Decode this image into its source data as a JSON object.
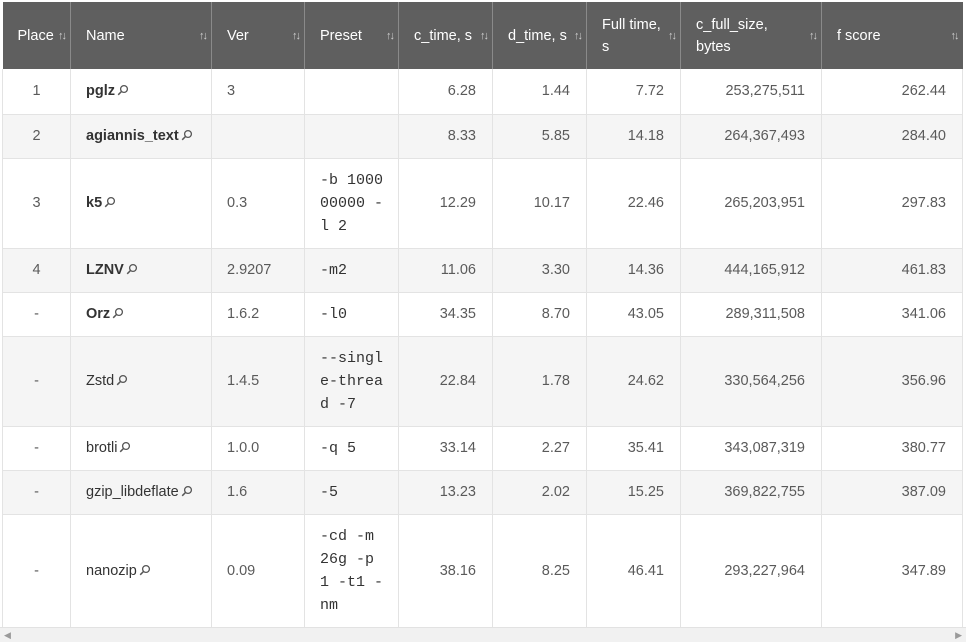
{
  "headers": [
    {
      "label": "Place"
    },
    {
      "label": "Name"
    },
    {
      "label": "Ver"
    },
    {
      "label": "Preset"
    },
    {
      "label": "c_time, s"
    },
    {
      "label": "d_time, s"
    },
    {
      "label": "Full time, s"
    },
    {
      "label": "c_full_size, bytes"
    },
    {
      "label": "f score"
    }
  ],
  "rows": [
    {
      "place": "1",
      "name": "pglz",
      "bold": true,
      "ver": "3",
      "preset": "",
      "c_time": "6.28",
      "d_time": "1.44",
      "full_time": "7.72",
      "c_full_size": "253,275,511",
      "f_score": "262.44"
    },
    {
      "place": "2",
      "name": "agiannis_text",
      "bold": true,
      "ver": "",
      "preset": "",
      "c_time": "8.33",
      "d_time": "5.85",
      "full_time": "14.18",
      "c_full_size": "264,367,493",
      "f_score": "284.40"
    },
    {
      "place": "3",
      "name": "k5",
      "bold": true,
      "ver": "0.3",
      "preset": "-b 100000000 -l 2",
      "c_time": "12.29",
      "d_time": "10.17",
      "full_time": "22.46",
      "c_full_size": "265,203,951",
      "f_score": "297.83"
    },
    {
      "place": "4",
      "name": "LZNV",
      "bold": true,
      "ver": "2.9207",
      "preset": "-m2",
      "c_time": "11.06",
      "d_time": "3.30",
      "full_time": "14.36",
      "c_full_size": "444,165,912",
      "f_score": "461.83"
    },
    {
      "place": "-",
      "name": "Orz",
      "bold": true,
      "ver": "1.6.2",
      "preset": "-l0",
      "c_time": "34.35",
      "d_time": "8.70",
      "full_time": "43.05",
      "c_full_size": "289,311,508",
      "f_score": "341.06"
    },
    {
      "place": "-",
      "name": "Zstd",
      "bold": false,
      "ver": "1.4.5",
      "preset": "--single-thread -7",
      "c_time": "22.84",
      "d_time": "1.78",
      "full_time": "24.62",
      "c_full_size": "330,564,256",
      "f_score": "356.96"
    },
    {
      "place": "-",
      "name": "brotli",
      "bold": false,
      "ver": "1.0.0",
      "preset": "-q 5",
      "c_time": "33.14",
      "d_time": "2.27",
      "full_time": "35.41",
      "c_full_size": "343,087,319",
      "f_score": "380.77"
    },
    {
      "place": "-",
      "name": "gzip_libdeflate",
      "bold": false,
      "ver": "1.6",
      "preset": "-5",
      "c_time": "13.23",
      "d_time": "2.02",
      "full_time": "15.25",
      "c_full_size": "369,822,755",
      "f_score": "387.09"
    },
    {
      "place": "-",
      "name": "nanozip",
      "bold": false,
      "ver": "0.09",
      "preset": "-cd -m 26g -p 1 -t1 -nm",
      "c_time": "38.16",
      "d_time": "8.25",
      "full_time": "46.41",
      "c_full_size": "293,227,964",
      "f_score": "347.89"
    }
  ],
  "icons": {
    "sort": "sort-arrows-icon",
    "name_link": "magnifier-icon",
    "scroll_left": "arrow-left-icon",
    "scroll_right": "arrow-right-icon"
  }
}
